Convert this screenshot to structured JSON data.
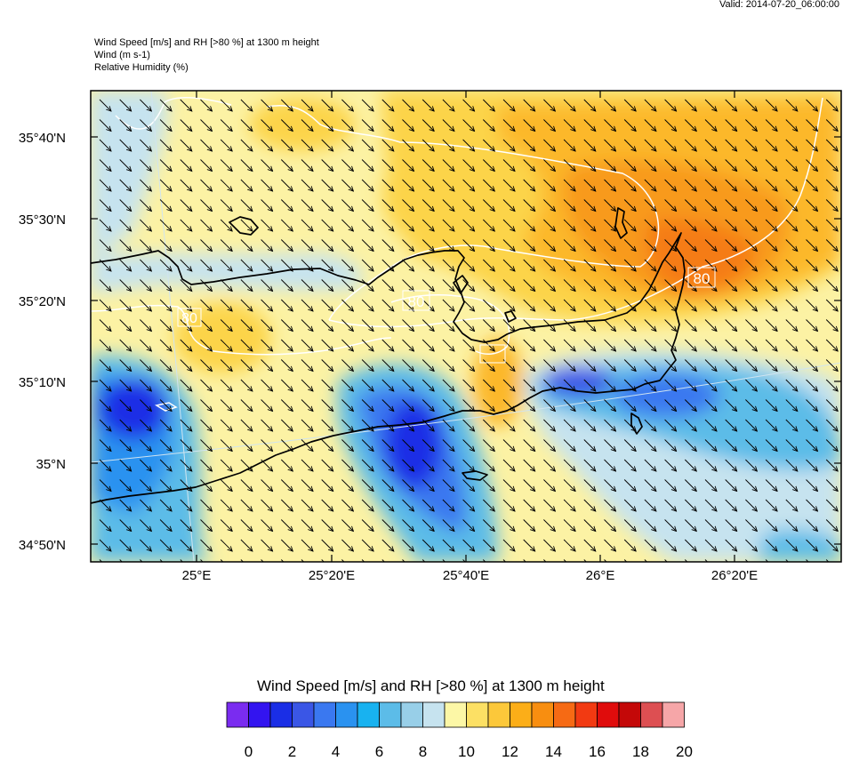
{
  "valid_time": "Valid: 2014-07-20_06:00:00",
  "header": {
    "line1": "Wind Speed [m/s] and RH [>80 %] at 1300 m height",
    "line2": "Wind   (m s-1)",
    "line3": "Relative Humidity   (%)"
  },
  "lat_labels": [
    "35°40'N",
    "35°30'N",
    "35°20'N",
    "35°10'N",
    "35°N",
    "34°50'N"
  ],
  "lon_labels": [
    "25°E",
    "25°20'E",
    "25°40'E",
    "26°E",
    "26°20'E"
  ],
  "contour_labels": [
    "80",
    "80",
    "80"
  ],
  "colorbar": {
    "title": "Wind Speed [m/s] and RH [>80 %] at 1300 m height",
    "labels": [
      "0",
      "2",
      "4",
      "6",
      "8",
      "10",
      "12",
      "14",
      "16",
      "18",
      "20"
    ],
    "colors": [
      "#7a2cf0",
      "#3314f0",
      "#1a2ee6",
      "#3a56e6",
      "#3a78f0",
      "#2a92f0",
      "#18b2f0",
      "#5cbce8",
      "#98cfe8",
      "#c6e3ef",
      "#fcf7a6",
      "#fce064",
      "#fcc83a",
      "#fcae18",
      "#f88e10",
      "#f66a14",
      "#f23a12",
      "#e00c0c",
      "#c40808",
      "#dd4f52",
      "#f6a6a8"
    ]
  }
}
